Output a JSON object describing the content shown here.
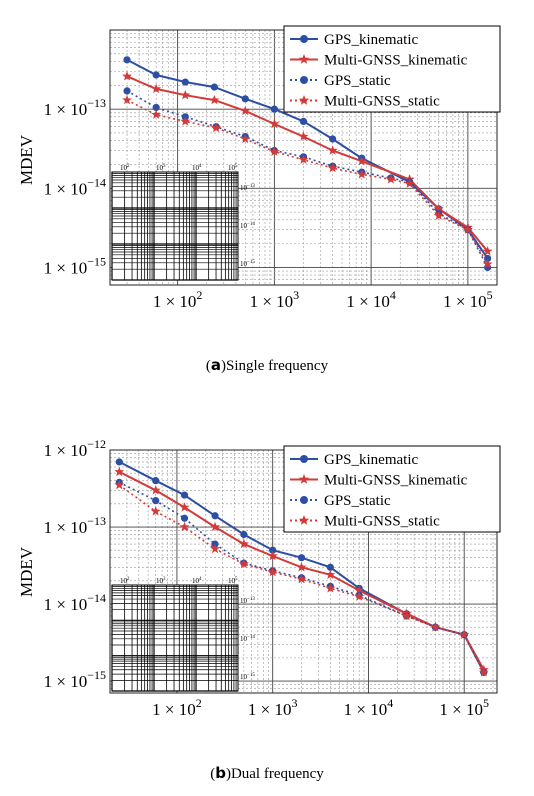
{
  "chart_data": [
    {
      "panel": "a",
      "caption_label": "a",
      "caption_text": "Single frequency",
      "type": "line",
      "xscale": "log",
      "yscale": "log",
      "ylabel": "MDEV",
      "xlim": [
        20,
        200000
      ],
      "ylim": [
        6e-16,
        1e-12
      ],
      "x_ticks": [
        {
          "value": 100,
          "mant": "1 × 10",
          "exp": "2"
        },
        {
          "value": 1000,
          "mant": "1 × 10",
          "exp": "3"
        },
        {
          "value": 10000,
          "mant": "1 × 10",
          "exp": "4"
        },
        {
          "value": 100000,
          "mant": "1 × 10",
          "exp": "5"
        }
      ],
      "y_ticks": [
        {
          "value": 1e-15,
          "mant": "1 × 10",
          "exp": "−15"
        },
        {
          "value": 1e-14,
          "mant": "1 × 10",
          "exp": "−14"
        },
        {
          "value": 1e-13,
          "mant": "1 × 10",
          "exp": "−13"
        }
      ],
      "grid": true,
      "legend_position": "top-right",
      "series": [
        {
          "name": "GPS_kinematic",
          "color": "#2d4fa3",
          "style": "solid",
          "marker": "circle",
          "points": [
            [
              30,
              4.2e-13
            ],
            [
              60,
              2.7e-13
            ],
            [
              120,
              2.2e-13
            ],
            [
              240,
              1.9e-13
            ],
            [
              500,
              1.35e-13
            ],
            [
              1000,
              1e-13
            ],
            [
              2000,
              7e-14
            ],
            [
              4000,
              4.2e-14
            ],
            [
              8000,
              2.4e-14
            ],
            [
              25000,
              1.2e-14
            ],
            [
              50000,
              5.5e-15
            ],
            [
              100000,
              3e-15
            ],
            [
              160000,
              1.3e-15
            ]
          ]
        },
        {
          "name": "Multi-GNSS_kinematic",
          "color": "#d33a3a",
          "style": "solid",
          "marker": "star",
          "points": [
            [
              30,
              2.6e-13
            ],
            [
              60,
              1.8e-13
            ],
            [
              120,
              1.5e-13
            ],
            [
              240,
              1.3e-13
            ],
            [
              500,
              9.5e-14
            ],
            [
              1000,
              6.5e-14
            ],
            [
              2000,
              4.5e-14
            ],
            [
              4000,
              3e-14
            ],
            [
              8000,
              2.2e-14
            ],
            [
              25000,
              1.3e-14
            ],
            [
              50000,
              5.5e-15
            ],
            [
              100000,
              3.2e-15
            ],
            [
              160000,
              1.6e-15
            ]
          ]
        },
        {
          "name": "GPS_static",
          "color": "#2d4fa3",
          "style": "dotted",
          "marker": "circle",
          "points": [
            [
              30,
              1.7e-13
            ],
            [
              60,
              1.05e-13
            ],
            [
              120,
              8e-14
            ],
            [
              250,
              6e-14
            ],
            [
              500,
              4.5e-14
            ],
            [
              1000,
              3e-14
            ],
            [
              2000,
              2.5e-14
            ],
            [
              4000,
              1.9e-14
            ],
            [
              8000,
              1.6e-14
            ],
            [
              16000,
              1.35e-14
            ],
            [
              25000,
              1.2e-14
            ],
            [
              50000,
              4.8e-15
            ],
            [
              100000,
              3e-15
            ],
            [
              160000,
              1e-15
            ]
          ]
        },
        {
          "name": "Multi-GNSS_static",
          "color": "#d33a3a",
          "style": "dotted",
          "marker": "star",
          "points": [
            [
              30,
              1.3e-13
            ],
            [
              60,
              8.5e-14
            ],
            [
              120,
              7e-14
            ],
            [
              250,
              5.8e-14
            ],
            [
              500,
              4.2e-14
            ],
            [
              1000,
              2.9e-14
            ],
            [
              2000,
              2.3e-14
            ],
            [
              4000,
              1.8e-14
            ],
            [
              8000,
              1.5e-14
            ],
            [
              16000,
              1.3e-14
            ],
            [
              25000,
              1.15e-14
            ],
            [
              50000,
              4.5e-15
            ],
            [
              100000,
              3e-15
            ],
            [
              160000,
              1.1e-15
            ]
          ]
        }
      ],
      "inset": {
        "x_tick_labels": [
          "10",
          "10",
          "10",
          "10"
        ],
        "x_tick_exps": [
          "2",
          "3",
          "4",
          "5"
        ],
        "y_tick_labels": [
          "10",
          "10",
          "10"
        ],
        "y_tick_exps": [
          "−13",
          "−14",
          "−15"
        ]
      }
    },
    {
      "panel": "b",
      "caption_label": "b",
      "caption_text": "Dual frequency",
      "type": "line",
      "xscale": "log",
      "yscale": "log",
      "ylabel": "MDEV",
      "xlim": [
        20,
        220000
      ],
      "ylim": [
        7e-16,
        1e-12
      ],
      "x_ticks": [
        {
          "value": 100,
          "mant": "1 × 10",
          "exp": "2"
        },
        {
          "value": 1000,
          "mant": "1 × 10",
          "exp": "3"
        },
        {
          "value": 10000,
          "mant": "1 × 10",
          "exp": "4"
        },
        {
          "value": 100000,
          "mant": "1 × 10",
          "exp": "5"
        }
      ],
      "y_ticks": [
        {
          "value": 1e-15,
          "mant": "1 × 10",
          "exp": "−15"
        },
        {
          "value": 1e-14,
          "mant": "1 × 10",
          "exp": "−14"
        },
        {
          "value": 1e-13,
          "mant": "1 × 10",
          "exp": "−13"
        },
        {
          "value": 1e-12,
          "mant": "1 × 10",
          "exp": "−12"
        }
      ],
      "grid": true,
      "legend_position": "top-right",
      "series": [
        {
          "name": "GPS_kinematic",
          "color": "#2d4fa3",
          "style": "solid",
          "marker": "circle",
          "points": [
            [
              25,
              7e-13
            ],
            [
              60,
              4e-13
            ],
            [
              120,
              2.6e-13
            ],
            [
              250,
              1.4e-13
            ],
            [
              500,
              8e-14
            ],
            [
              1000,
              5e-14
            ],
            [
              2000,
              4e-14
            ],
            [
              4000,
              3e-14
            ],
            [
              8000,
              1.6e-14
            ],
            [
              25000,
              7.5e-15
            ],
            [
              50000,
              5e-15
            ],
            [
              100000,
              4e-15
            ],
            [
              160000,
              1.3e-15
            ]
          ]
        },
        {
          "name": "Multi-GNSS_kinematic",
          "color": "#d33a3a",
          "style": "solid",
          "marker": "star",
          "points": [
            [
              25,
              5.2e-13
            ],
            [
              60,
              3e-13
            ],
            [
              120,
              1.8e-13
            ],
            [
              250,
              1e-13
            ],
            [
              500,
              6e-14
            ],
            [
              1000,
              4.2e-14
            ],
            [
              2000,
              3e-14
            ],
            [
              4000,
              2.4e-14
            ],
            [
              8000,
              1.5e-14
            ],
            [
              25000,
              7.5e-15
            ],
            [
              50000,
              5e-15
            ],
            [
              100000,
              4e-15
            ],
            [
              160000,
              1.4e-15
            ]
          ]
        },
        {
          "name": "GPS_static",
          "color": "#2d4fa3",
          "style": "dotted",
          "marker": "circle",
          "points": [
            [
              25,
              3.8e-13
            ],
            [
              60,
              2.2e-13
            ],
            [
              120,
              1.3e-13
            ],
            [
              250,
              6e-14
            ],
            [
              500,
              3.4e-14
            ],
            [
              1000,
              2.7e-14
            ],
            [
              2000,
              2.2e-14
            ],
            [
              4000,
              1.7e-14
            ],
            [
              8000,
              1.3e-14
            ],
            [
              25000,
              7e-15
            ],
            [
              50000,
              5e-15
            ],
            [
              100000,
              4e-15
            ],
            [
              160000,
              1.3e-15
            ]
          ]
        },
        {
          "name": "Multi-GNSS_static",
          "color": "#d33a3a",
          "style": "dotted",
          "marker": "star",
          "points": [
            [
              25,
              3.5e-13
            ],
            [
              60,
              1.6e-13
            ],
            [
              120,
              1e-13
            ],
            [
              250,
              5.2e-14
            ],
            [
              500,
              3.3e-14
            ],
            [
              1000,
              2.6e-14
            ],
            [
              2000,
              2.1e-14
            ],
            [
              4000,
              1.6e-14
            ],
            [
              8000,
              1.25e-14
            ],
            [
              25000,
              7e-15
            ],
            [
              50000,
              5e-15
            ],
            [
              100000,
              4e-15
            ],
            [
              160000,
              1.3e-15
            ]
          ]
        }
      ],
      "inset": {
        "x_tick_labels": [
          "10",
          "10",
          "10",
          "10"
        ],
        "x_tick_exps": [
          "2",
          "3",
          "4",
          "5"
        ],
        "y_tick_labels": [
          "10",
          "10",
          "10"
        ],
        "y_tick_exps": [
          "−13",
          "−14",
          "−15"
        ]
      }
    }
  ]
}
